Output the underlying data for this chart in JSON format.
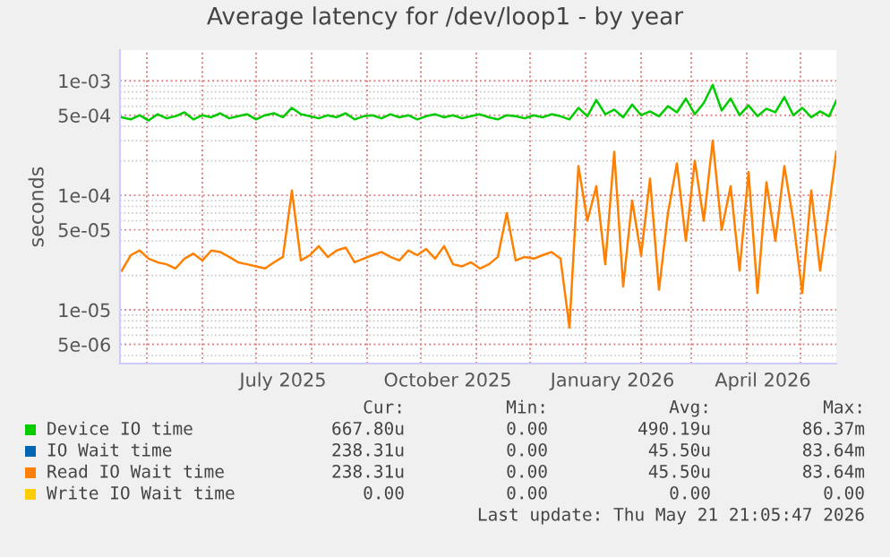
{
  "chart_data": {
    "type": "line",
    "title": "Average latency for /dev/loop1 - by year",
    "ylabel": "seconds",
    "x": [
      "2025-04-17",
      "2025-04-22",
      "2025-04-27",
      "2025-05-02",
      "2025-05-07",
      "2025-05-12",
      "2025-05-17",
      "2025-05-22",
      "2025-05-27",
      "2025-06-01",
      "2025-06-06",
      "2025-06-11",
      "2025-06-16",
      "2025-06-21",
      "2025-06-26",
      "2025-07-01",
      "2025-07-06",
      "2025-07-11",
      "2025-07-16",
      "2025-07-21",
      "2025-07-26",
      "2025-07-31",
      "2025-08-05",
      "2025-08-10",
      "2025-08-15",
      "2025-08-20",
      "2025-08-25",
      "2025-08-30",
      "2025-09-04",
      "2025-09-09",
      "2025-09-14",
      "2025-09-19",
      "2025-09-24",
      "2025-09-29",
      "2025-10-04",
      "2025-10-09",
      "2025-10-14",
      "2025-10-19",
      "2025-10-24",
      "2025-10-29",
      "2025-11-03",
      "2025-11-08",
      "2025-11-13",
      "2025-11-18",
      "2025-11-23",
      "2025-11-28",
      "2025-12-03",
      "2025-12-08",
      "2025-12-13",
      "2025-12-18",
      "2025-12-23",
      "2025-12-28",
      "2026-01-02",
      "2026-01-07",
      "2026-01-12",
      "2026-01-17",
      "2026-01-22",
      "2026-01-27",
      "2026-02-01",
      "2026-02-06",
      "2026-02-11",
      "2026-02-16",
      "2026-02-21",
      "2026-02-26",
      "2026-03-03",
      "2026-03-08",
      "2026-03-13",
      "2026-03-18",
      "2026-03-23",
      "2026-03-28",
      "2026-04-02",
      "2026-04-07",
      "2026-04-12",
      "2026-04-17",
      "2026-04-22",
      "2026-04-27",
      "2026-05-02",
      "2026-05-07",
      "2026-05-12",
      "2026-05-17",
      "2026-05-21"
    ],
    "series": [
      {
        "name": "Device IO time",
        "color": "#00cc00",
        "values": [
          0.00048,
          0.00046,
          0.0005,
          0.00045,
          0.00051,
          0.00047,
          0.00049,
          0.00053,
          0.00046,
          0.0005,
          0.00048,
          0.00052,
          0.00047,
          0.00049,
          0.00051,
          0.00046,
          0.0005,
          0.00052,
          0.00048,
          0.00058,
          0.00051,
          0.00049,
          0.00047,
          0.0005,
          0.00048,
          0.00052,
          0.00046,
          0.00049,
          0.0005,
          0.00047,
          0.00051,
          0.00048,
          0.0005,
          0.00046,
          0.00049,
          0.00051,
          0.00048,
          0.0005,
          0.00047,
          0.00049,
          0.00051,
          0.00048,
          0.00046,
          0.0005,
          0.00049,
          0.00047,
          0.0005,
          0.00048,
          0.00051,
          0.00049,
          0.00046,
          0.00058,
          0.00049,
          0.00068,
          0.00051,
          0.00056,
          0.00048,
          0.00062,
          0.0005,
          0.00054,
          0.00049,
          0.0006,
          0.00053,
          0.0007,
          0.00051,
          0.00064,
          0.00092,
          0.00055,
          0.0007,
          0.0005,
          0.00061,
          0.00049,
          0.00057,
          0.00053,
          0.00072,
          0.0005,
          0.00058,
          0.00048,
          0.00054,
          0.00049,
          0.00067
        ]
      },
      {
        "name": "IO Wait time",
        "color": "#0066b3",
        "values": [
          null,
          null,
          null,
          null,
          null,
          null,
          null,
          null,
          null,
          null,
          null,
          null,
          null,
          null,
          null,
          null,
          null,
          null,
          null,
          null,
          null,
          null,
          null,
          null,
          null,
          null,
          null,
          null,
          null,
          null,
          null,
          null,
          null,
          null,
          null,
          null,
          null,
          null,
          null,
          null,
          null,
          null,
          null,
          null,
          null,
          null,
          null,
          null,
          null,
          null,
          null,
          null,
          null,
          null,
          null,
          null,
          null,
          null,
          null,
          null,
          null,
          null,
          null,
          null,
          null,
          null,
          null,
          null,
          null,
          null,
          null,
          null,
          null,
          null,
          null,
          null,
          null,
          null,
          null,
          null,
          null
        ]
      },
      {
        "name": "Read IO Wait time",
        "color": "#ff8000",
        "values": [
          2.2e-05,
          3e-05,
          3.3e-05,
          2.8e-05,
          2.6e-05,
          2.5e-05,
          2.3e-05,
          2.8e-05,
          3.1e-05,
          2.7e-05,
          3.3e-05,
          3.2e-05,
          2.9e-05,
          2.6e-05,
          2.5e-05,
          2.4e-05,
          2.3e-05,
          2.6e-05,
          2.9e-05,
          0.00011,
          2.7e-05,
          3e-05,
          3.6e-05,
          2.9e-05,
          3.3e-05,
          3.5e-05,
          2.6e-05,
          2.8e-05,
          3e-05,
          3.2e-05,
          2.9e-05,
          2.7e-05,
          3.3e-05,
          3e-05,
          3.4e-05,
          2.8e-05,
          3.6e-05,
          2.5e-05,
          2.4e-05,
          2.6e-05,
          2.3e-05,
          2.5e-05,
          2.9e-05,
          7e-05,
          2.7e-05,
          2.9e-05,
          2.8e-05,
          3e-05,
          3.2e-05,
          2.8e-05,
          7e-06,
          0.00018,
          6e-05,
          0.00012,
          2.5e-05,
          0.00024,
          1.6e-05,
          9e-05,
          3e-05,
          0.00014,
          1.5e-05,
          7e-05,
          0.00019,
          4e-05,
          0.0002,
          6e-05,
          0.0003,
          5e-05,
          0.00012,
          2.2e-05,
          0.00016,
          1.4e-05,
          0.00013,
          4e-05,
          0.00018,
          6e-05,
          1.4e-05,
          0.00011,
          2.2e-05,
          8e-05,
          0.00024
        ]
      },
      {
        "name": "Write IO Wait time",
        "color": "#ffcc00",
        "values": [
          null,
          null,
          null,
          null,
          null,
          null,
          null,
          null,
          null,
          null,
          null,
          null,
          null,
          null,
          null,
          null,
          null,
          null,
          null,
          null,
          null,
          null,
          null,
          null,
          null,
          null,
          null,
          null,
          null,
          null,
          null,
          null,
          null,
          null,
          null,
          null,
          null,
          null,
          null,
          null,
          null,
          null,
          null,
          null,
          null,
          null,
          null,
          null,
          null,
          null,
          null,
          null,
          null,
          null,
          null,
          null,
          null,
          null,
          null,
          null,
          null,
          null,
          null,
          null,
          null,
          null,
          null,
          null,
          null,
          null,
          null,
          null,
          null,
          null,
          null,
          null,
          null,
          null,
          null,
          null,
          null
        ]
      }
    ],
    "log": "y",
    "ylim": [
      3.4e-06,
      0.00185
    ],
    "yticks": [
      {
        "value": 5e-06,
        "label": "5e-06"
      },
      {
        "value": 1e-05,
        "label": "1e-05"
      },
      {
        "value": 5e-05,
        "label": "5e-05"
      },
      {
        "value": 0.0001,
        "label": "1e-04"
      },
      {
        "value": 0.0005,
        "label": "5e-04"
      },
      {
        "value": 0.001,
        "label": "1e-03"
      }
    ],
    "xlim": [
      "2025-04-16",
      "2026-05-21"
    ],
    "xticks": [
      {
        "value": "2025-07-16",
        "label": "July 2025"
      },
      {
        "value": "2025-10-16",
        "label": "October 2025"
      },
      {
        "value": "2026-01-16",
        "label": "January 2026"
      },
      {
        "value": "2026-04-10",
        "label": "April 2026"
      }
    ],
    "grid": true,
    "legend": "bottom",
    "marker": "none",
    "line_style": "solid",
    "annotations": [
      "Cur:",
      "Min:",
      "Avg:",
      "Max:",
      "667.80u",
      "0.00",
      "490.19u",
      "86.37m",
      "238.31u",
      "0.00",
      "45.50u",
      "83.64m",
      "238.31u",
      "0.00",
      "45.50u",
      "83.64m",
      "0.00",
      "0.00",
      "0.00",
      "0.00",
      "Last update: Thu May 21 21:05:47 2026"
    ]
  }
}
